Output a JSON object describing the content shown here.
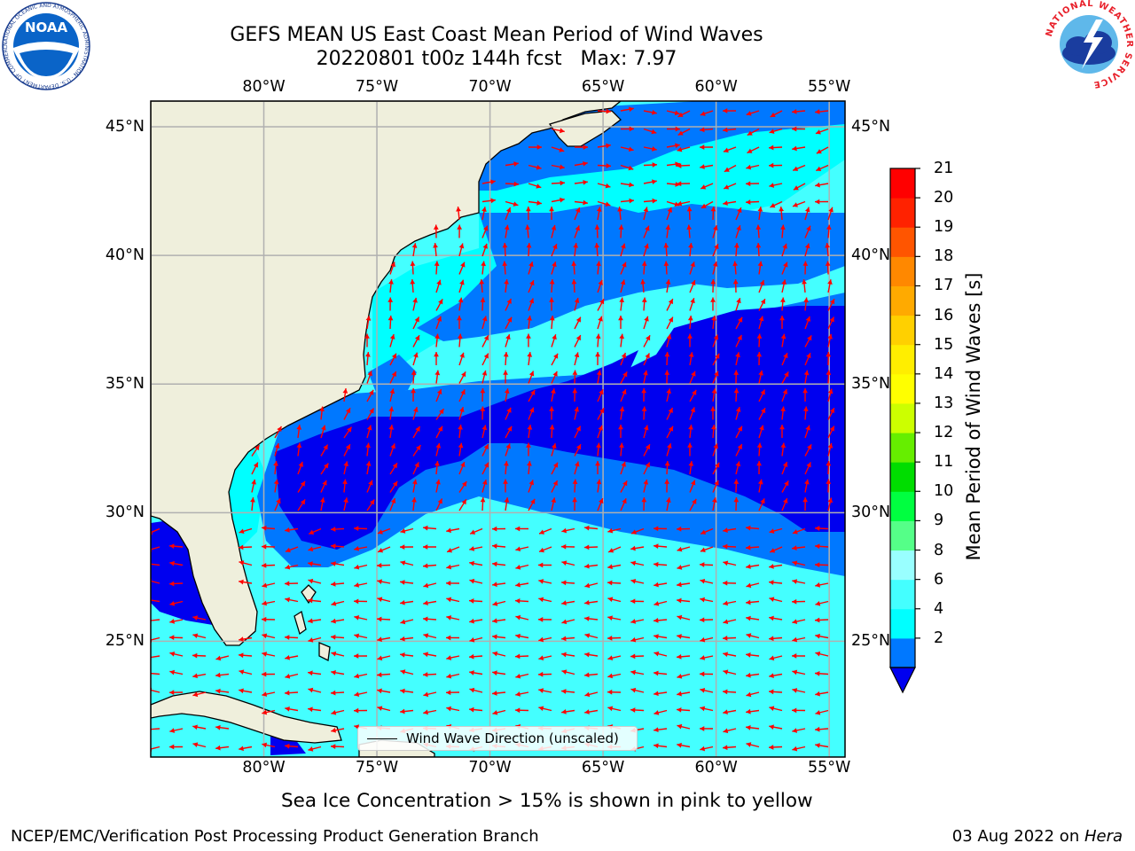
{
  "header": {
    "title": "GEFS MEAN US East Coast Mean Period of Wind Waves",
    "subtitle": "20220801 t00z 144h fcst   Max: 7.97"
  },
  "map": {
    "lon_ticks": [
      "80°W",
      "75°W",
      "70°W",
      "65°W",
      "60°W",
      "55°W"
    ],
    "lat_ticks": [
      "45°N",
      "40°N",
      "35°N",
      "30°N",
      "25°N"
    ],
    "lon_range": [
      -85,
      -54.3
    ],
    "lat_range": [
      20.5,
      46
    ],
    "legend_label": "Wind Wave Direction (unscaled)",
    "colors": {
      "land": "#efefdc",
      "level_2_4": "#0078ff",
      "level_4_6": "#00ffff",
      "level_6_8": "#44ffff",
      "level_below_2": "#0000ef",
      "arrow": "#ff0000",
      "grid": "#b0b0b0"
    }
  },
  "colorbar": {
    "label": "Mean Period of Wind Waves [s]",
    "ticks": [
      "21",
      "20",
      "19",
      "18",
      "17",
      "16",
      "15",
      "14",
      "13",
      "12",
      "11",
      "10",
      "9",
      "8",
      "6",
      "4",
      "2"
    ],
    "colors": [
      "#0078ff",
      "#00ffff",
      "#44ffff",
      "#99ffff",
      "#55ff88",
      "#00ff40",
      "#00dd00",
      "#66ee00",
      "#ccff00",
      "#ffff00",
      "#ffee00",
      "#ffd000",
      "#ffaa00",
      "#ff8800",
      "#ff5500",
      "#ff2200",
      "#ff0000"
    ],
    "extend_color": "#0000ef"
  },
  "caption": "Sea Ice Concentration > 15% is shown in pink to yellow",
  "footer": {
    "left": "NCEP/EMC/Verification Post Processing Product Generation Branch",
    "right_prefix": "03 Aug 2022 on ",
    "right_host": "Hera"
  },
  "logos": {
    "noaa_text": "NOAA",
    "noaa_ring": "NATIONAL OCEANIC AND ATMOSPHERIC ADMINISTRATION · U.S. DEPARTMENT OF COMMERCE",
    "nws_ring": "NATIONAL WEATHER SERVICE"
  }
}
